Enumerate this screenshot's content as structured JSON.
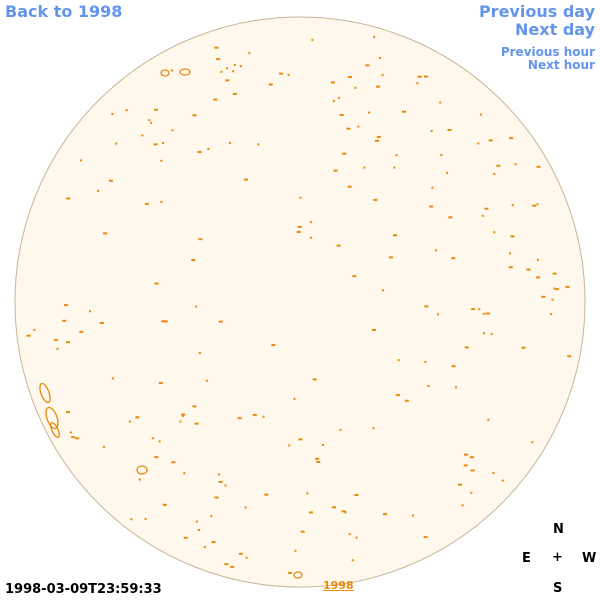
{
  "nav": {
    "back": "Back to 1998",
    "previous_day": "Previous day",
    "next_day": "Next day",
    "previous_hour": "Previous hour",
    "next_hour": "Next hour"
  },
  "timestamp": "1998-03-09T23:59:33",
  "compass": {
    "north": "N",
    "east": "E",
    "center": "+",
    "west": "W",
    "south": "S"
  },
  "year_link": "1998"
}
